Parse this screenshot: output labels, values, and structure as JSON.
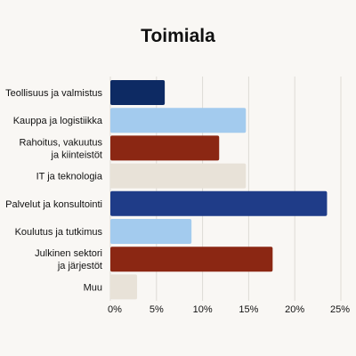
{
  "chart_data": {
    "type": "bar",
    "orientation": "horizontal",
    "title": "Toimiala",
    "xlabel": "",
    "ylabel": "",
    "categories": [
      "Teollisuus ja valmistus",
      "Kauppa ja logistiikka",
      "Rahoitus, vakuutus ja kiinteistöt",
      "IT ja teknologia",
      "Palvelut ja konsultointi",
      "Koulutus ja tutkimus",
      "Julkinen sektori ja järjestöt",
      "Muu"
    ],
    "category_label_lines": [
      [
        "Teollisuus ja valmistus"
      ],
      [
        "Kauppa ja logistiikka"
      ],
      [
        "Rahoitus, vakuutus",
        "ja kiinteistöt"
      ],
      [
        "IT ja teknologia"
      ],
      [
        "Palvelut ja konsultointi"
      ],
      [
        "Koulutus ja tutkimus"
      ],
      [
        "Julkinen sektori",
        "ja järjestöt"
      ],
      [
        "Muu"
      ]
    ],
    "values": [
      5.9,
      14.7,
      11.8,
      14.7,
      23.5,
      8.8,
      17.6,
      2.9
    ],
    "bar_colors": [
      "#0d2a63",
      "#a3cbee",
      "#8b2713",
      "#e8e2d8",
      "#1f3c88",
      "#a3cbee",
      "#8b2713",
      "#e8e2d8"
    ],
    "xlim": [
      0,
      25
    ],
    "xticks": [
      0,
      5,
      10,
      15,
      20,
      25
    ],
    "xtick_labels": [
      "0%",
      "5%",
      "10%",
      "15%",
      "20%",
      "25%"
    ],
    "grid": true,
    "legend": "none"
  }
}
